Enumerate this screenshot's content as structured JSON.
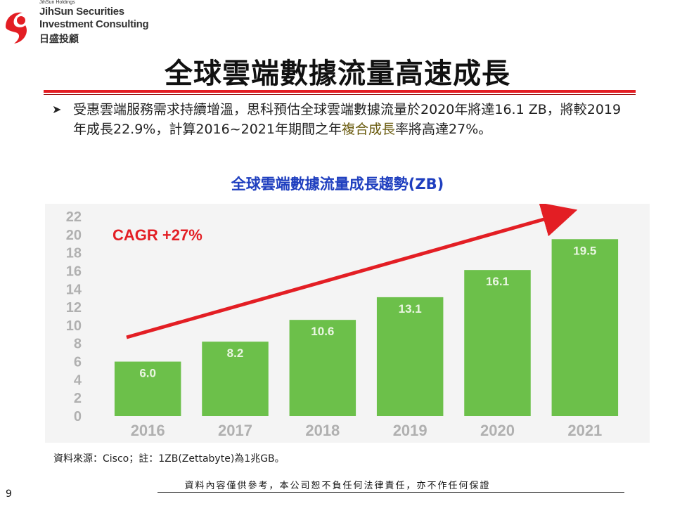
{
  "logo": {
    "holdings": "JihSun Holdings",
    "line1": "JihSun Securities",
    "line2": "Investment Consulting",
    "line3": "日盛投顧",
    "icon": "jihsun-logo-mark",
    "brand_color": "#e31e24"
  },
  "title": "全球雲端數據流量高速成長",
  "bullet": {
    "icon": "arrowhead-bullet-icon",
    "text_a": "受惠雲端服務需求持續增溫，思科預估全球雲端數據流量於2020年將達16.1 ZB，將較2019年成長22.9%，計算2016~2021年期間之年",
    "text_highlight": "複合成長",
    "text_b": "率將高達27%。"
  },
  "chart_title": "全球雲端數據流量成長趨勢(ZB)",
  "chart_data": {
    "type": "bar",
    "categories": [
      "2016",
      "2017",
      "2018",
      "2019",
      "2020",
      "2021"
    ],
    "values": [
      6.0,
      8.2,
      10.6,
      13.1,
      16.1,
      19.5
    ],
    "data_labels": [
      "6.0",
      "8.2",
      "10.6",
      "13.1",
      "16.1",
      "19.5"
    ],
    "yticks": [
      "0",
      "2",
      "4",
      "6",
      "8",
      "10",
      "12",
      "14",
      "16",
      "18",
      "20",
      "22"
    ],
    "ylim": [
      0,
      22
    ],
    "bar_color": "#6cc04a",
    "grid": false,
    "annotation": "CAGR +27%",
    "annotation_color": "#e31e24",
    "arrow_color": "#e31e24"
  },
  "source_note": "資料來源：Cisco；註：1ZB(Zettabyte)為1兆GB。",
  "disclaimer": "資料內容僅供參考，本公司恕不負任何法律責任，亦不作任何保證",
  "page_number": "9"
}
